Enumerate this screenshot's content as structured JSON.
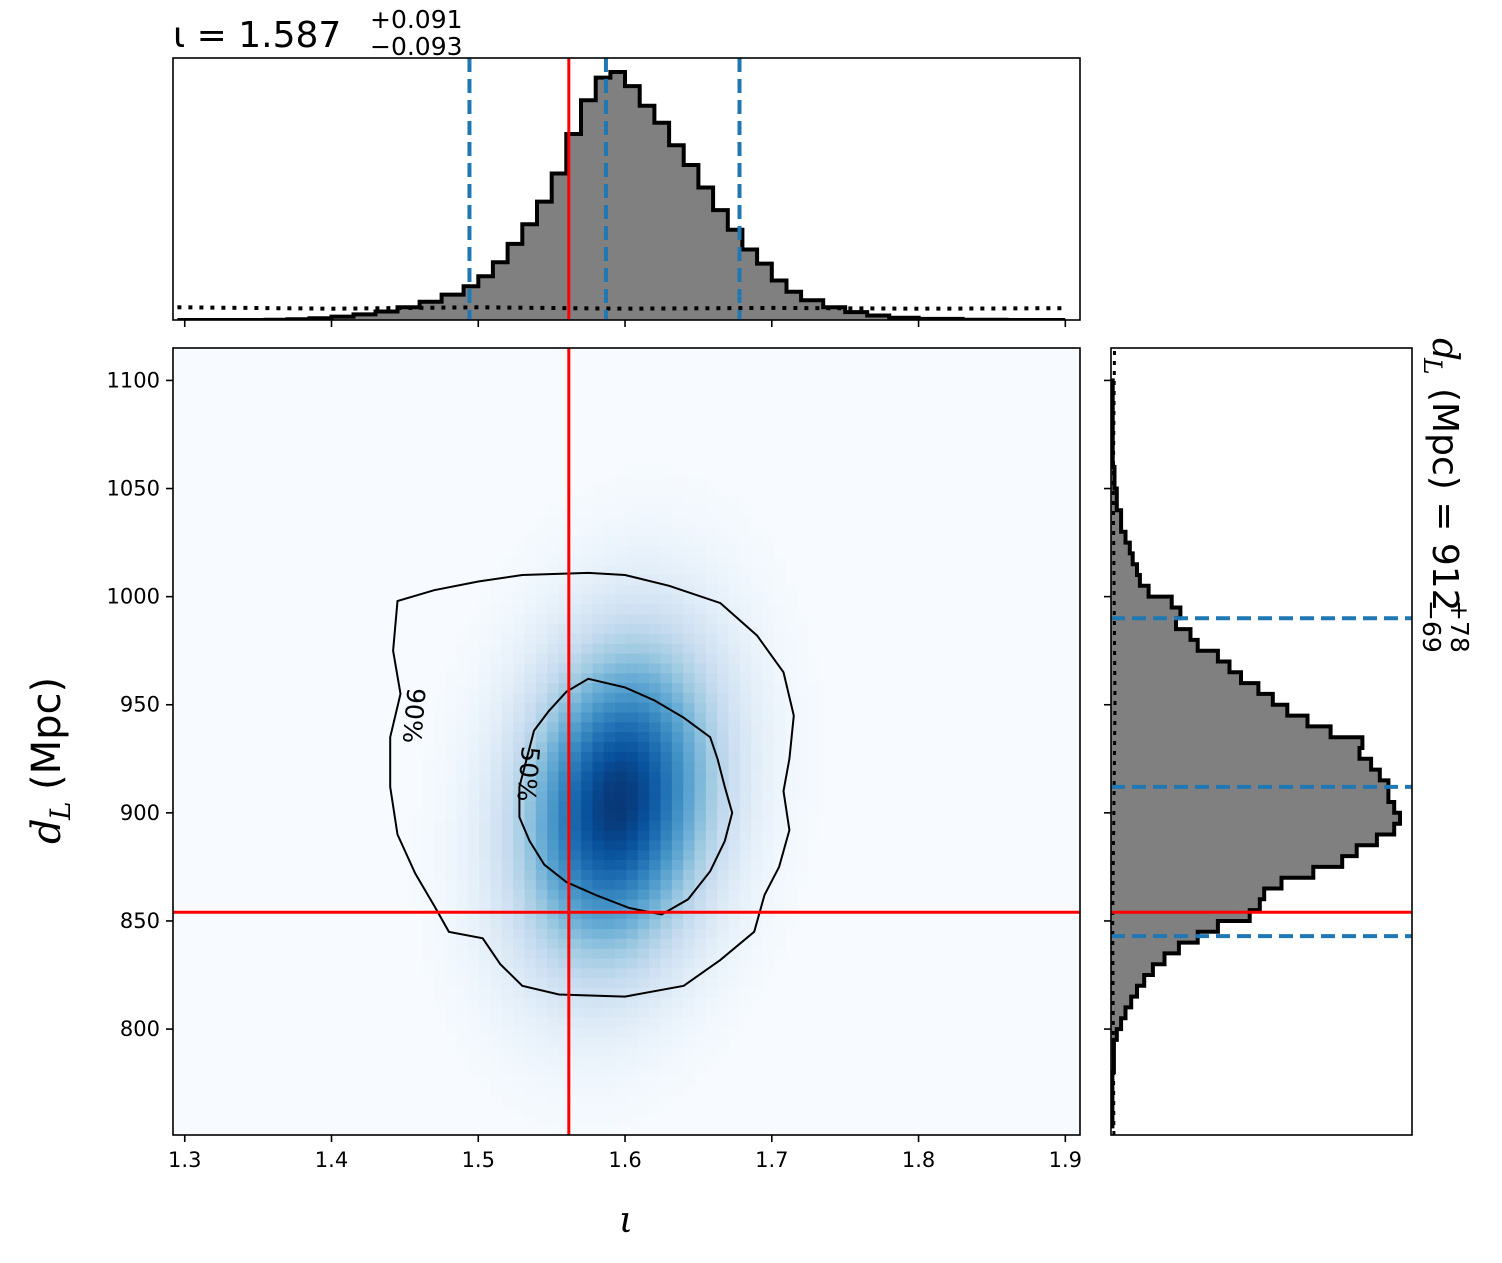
{
  "colors": {
    "truth": "#ff0000",
    "quantile": "#1f77b4",
    "hist_fill": "#808080",
    "hist_edge": "#000000",
    "density_low": "#f7fbff",
    "density_high": "#08306b"
  },
  "chart_data": {
    "type": "corner",
    "colormap": "Blues",
    "x": {
      "symbol": "ι",
      "xlim": [
        1.292,
        1.91
      ],
      "ticks": [
        1.3,
        1.4,
        1.5,
        1.6,
        1.7,
        1.8,
        1.9
      ],
      "tick_labels": [
        "1.3",
        "1.4",
        "1.5",
        "1.6",
        "1.7",
        "1.8",
        "1.9"
      ],
      "truth": 1.5617,
      "median": 1.587,
      "quantiles": [
        1.494,
        1.587,
        1.678
      ],
      "summary": {
        "prefix": "ι = 1.587",
        "plus": "+0.091",
        "minus": "−0.093"
      },
      "posterior_hist": {
        "edges": [
          1.295,
          1.31,
          1.325,
          1.34,
          1.355,
          1.37,
          1.385,
          1.4,
          1.415,
          1.43,
          1.445,
          1.46,
          1.475,
          1.49,
          1.5,
          1.51,
          1.52,
          1.53,
          1.54,
          1.55,
          1.56,
          1.57,
          1.58,
          1.59,
          1.6,
          1.61,
          1.62,
          1.63,
          1.64,
          1.65,
          1.66,
          1.67,
          1.68,
          1.69,
          1.7,
          1.71,
          1.72,
          1.735,
          1.75,
          1.765,
          1.78,
          1.8,
          1.83,
          1.86,
          1.9
        ],
        "density": [
          0,
          0,
          0,
          0,
          0.001,
          0.003,
          0.006,
          0.012,
          0.02,
          0.03,
          0.045,
          0.065,
          0.09,
          0.12,
          0.155,
          0.205,
          0.27,
          0.34,
          0.42,
          0.52,
          0.66,
          0.78,
          0.86,
          0.88,
          0.83,
          0.76,
          0.7,
          0.62,
          0.55,
          0.47,
          0.39,
          0.32,
          0.25,
          0.2,
          0.14,
          0.1,
          0.07,
          0.045,
          0.028,
          0.016,
          0.008,
          0.004,
          0.001,
          0
        ]
      },
      "prior_line": [
        [
          1.295,
          0.045
        ],
        [
          1.4,
          0.04
        ],
        [
          1.5,
          0.045
        ],
        [
          1.6,
          0.04
        ],
        [
          1.7,
          0.043
        ],
        [
          1.8,
          0.04
        ],
        [
          1.9,
          0.042
        ]
      ]
    },
    "y": {
      "symbol": "d",
      "subscript": "L",
      "unit": "(Mpc)",
      "ylim": [
        751,
        1115
      ],
      "ticks": [
        800,
        850,
        900,
        950,
        1000,
        1050,
        1100
      ],
      "tick_labels": [
        "800",
        "850",
        "900",
        "950",
        "1000",
        "1050",
        "1100"
      ],
      "truth": 854,
      "median": 912,
      "quantiles": [
        843,
        912,
        990
      ],
      "summary": {
        "prefix": "(Mpc) = 912",
        "plus": "+78",
        "minus": "−69"
      },
      "posterior_hist": {
        "edges": [
          755,
          780,
          795,
          800,
          805,
          810,
          815,
          820,
          825,
          830,
          835,
          840,
          845,
          850,
          855,
          860,
          865,
          870,
          875,
          880,
          885,
          890,
          895,
          900,
          905,
          910,
          915,
          920,
          925,
          930,
          935,
          940,
          945,
          950,
          955,
          960,
          965,
          970,
          975,
          980,
          985,
          990,
          995,
          1000,
          1005,
          1010,
          1015,
          1020,
          1025,
          1030,
          1040,
          1050,
          1060,
          1100
        ],
        "density": [
          0.005,
          0.01,
          0.02,
          0.035,
          0.05,
          0.07,
          0.09,
          0.115,
          0.145,
          0.185,
          0.235,
          0.3,
          0.37,
          0.48,
          0.515,
          0.53,
          0.59,
          0.7,
          0.8,
          0.85,
          0.92,
          0.98,
          1.0,
          0.98,
          0.96,
          0.96,
          0.93,
          0.9,
          0.86,
          0.87,
          0.76,
          0.68,
          0.61,
          0.56,
          0.51,
          0.45,
          0.41,
          0.37,
          0.3,
          0.275,
          0.225,
          0.24,
          0.21,
          0.13,
          0.1,
          0.09,
          0.075,
          0.065,
          0.05,
          0.035,
          0.02,
          0.012,
          0.006
        ],
        "max": 1.0
      },
      "prior_line": [
        [
          751,
          0.01
        ],
        [
          850,
          0.006
        ],
        [
          950,
          0.014
        ],
        [
          1050,
          0.008
        ],
        [
          1115,
          0.012
        ]
      ]
    },
    "joint": {
      "density_peak": {
        "x": 1.595,
        "y": 905,
        "sx": 0.045,
        "sy": 50
      },
      "contours": [
        {
          "label": "50%",
          "points": [
            [
              1.575,
              962
            ],
            [
              1.6,
              958
            ],
            [
              1.62,
              952
            ],
            [
              1.64,
              944
            ],
            [
              1.658,
              935
            ],
            [
              1.663,
              925
            ],
            [
              1.668,
              912
            ],
            [
              1.673,
              900
            ],
            [
              1.668,
              887
            ],
            [
              1.658,
              873
            ],
            [
              1.643,
              860
            ],
            [
              1.625,
              853
            ],
            [
              1.603,
              856
            ],
            [
              1.58,
              862
            ],
            [
              1.56,
              868
            ],
            [
              1.545,
              876
            ],
            [
              1.535,
              887
            ],
            [
              1.528,
              898
            ],
            [
              1.528,
              912
            ],
            [
              1.533,
              925
            ],
            [
              1.538,
              938
            ],
            [
              1.548,
              947
            ],
            [
              1.56,
              956
            ]
          ]
        },
        {
          "label": "90%",
          "points": [
            [
              1.575,
              1011
            ],
            [
              1.6,
              1010
            ],
            [
              1.63,
              1005
            ],
            [
              1.665,
              997
            ],
            [
              1.69,
              982
            ],
            [
              1.708,
              965
            ],
            [
              1.715,
              945
            ],
            [
              1.712,
              925
            ],
            [
              1.708,
              910
            ],
            [
              1.712,
              892
            ],
            [
              1.705,
              875
            ],
            [
              1.695,
              862
            ],
            [
              1.688,
              845
            ],
            [
              1.665,
              832
            ],
            [
              1.64,
              820
            ],
            [
              1.6,
              815
            ],
            [
              1.555,
              816
            ],
            [
              1.53,
              820
            ],
            [
              1.515,
              830
            ],
            [
              1.503,
              842
            ],
            [
              1.48,
              845
            ],
            [
              1.47,
              857
            ],
            [
              1.457,
              872
            ],
            [
              1.445,
              890
            ],
            [
              1.44,
              912
            ],
            [
              1.44,
              935
            ],
            [
              1.447,
              955
            ],
            [
              1.442,
              975
            ],
            [
              1.445,
              998
            ],
            [
              1.47,
              1003
            ],
            [
              1.5,
              1007
            ],
            [
              1.53,
              1010
            ]
          ]
        }
      ],
      "contour_labels": [
        {
          "text": "90%",
          "x": 1.455,
          "y": 945,
          "rotation": 95
        },
        {
          "text": "50%",
          "x": 1.533,
          "y": 918,
          "rotation": 95
        }
      ]
    }
  }
}
